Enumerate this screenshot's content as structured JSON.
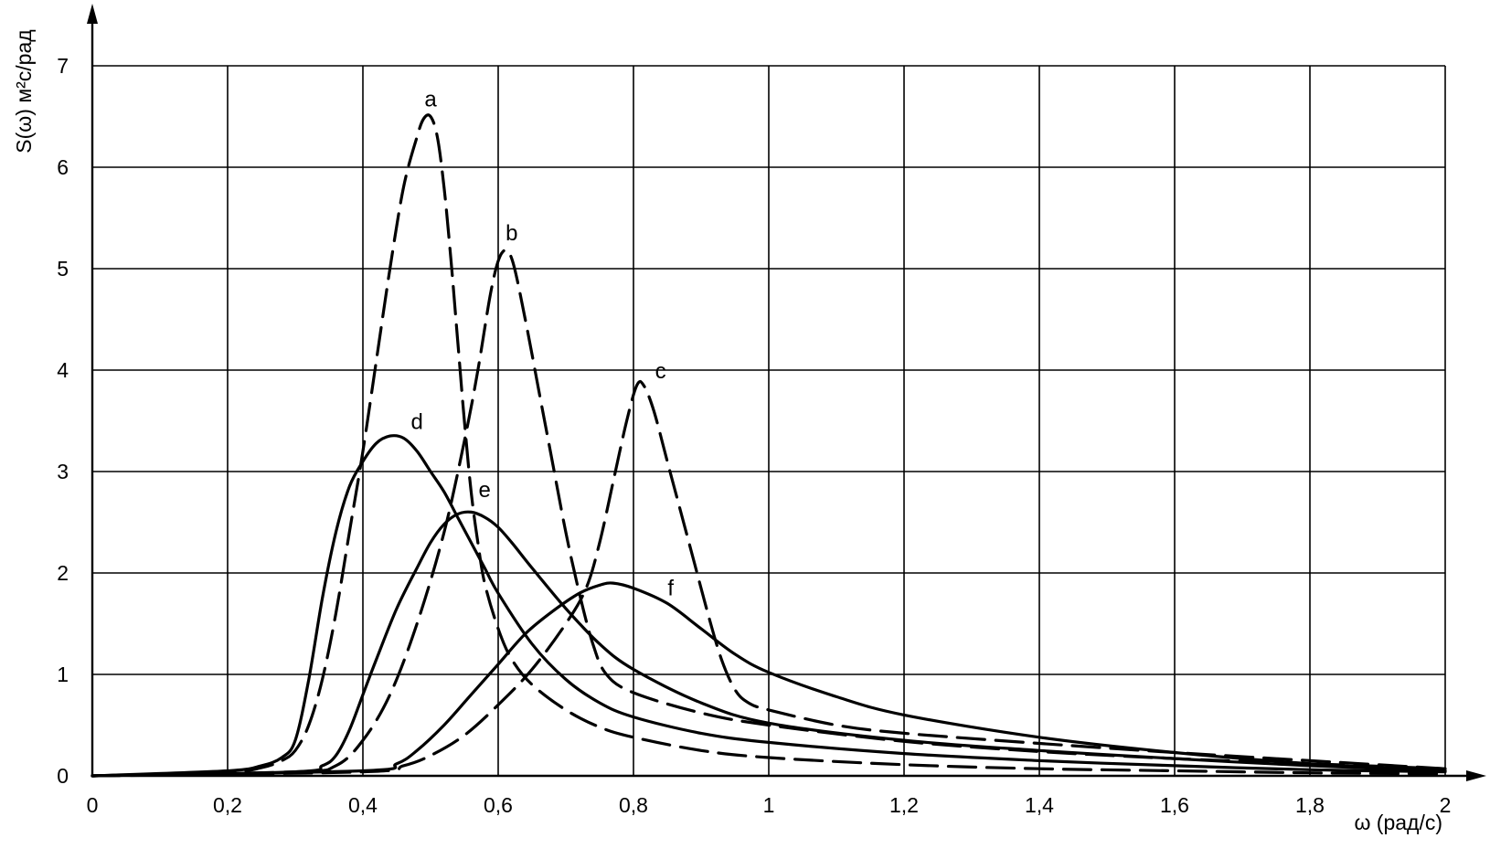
{
  "chart_data": {
    "type": "line",
    "ylabel": "S(ω) м²с/рад",
    "xlabel": "ω (рад/с)",
    "xlim": [
      0,
      2
    ],
    "ylim": [
      0,
      7
    ],
    "grid": true,
    "x_ticks": [
      {
        "value": 0,
        "label": "0"
      },
      {
        "value": 0.2,
        "label": "0,2"
      },
      {
        "value": 0.4,
        "label": "0,4"
      },
      {
        "value": 0.6,
        "label": "0,6"
      },
      {
        "value": 0.8,
        "label": "0,8"
      },
      {
        "value": 1,
        "label": "1"
      },
      {
        "value": 1.2,
        "label": "1,2"
      },
      {
        "value": 1.4,
        "label": "1,4"
      },
      {
        "value": 1.6,
        "label": "1,6"
      },
      {
        "value": 1.8,
        "label": "1,8"
      },
      {
        "value": 2,
        "label": "2"
      }
    ],
    "y_ticks": [
      {
        "value": 0,
        "label": "0"
      },
      {
        "value": 1,
        "label": "1"
      },
      {
        "value": 2,
        "label": "2"
      },
      {
        "value": 3,
        "label": "3"
      },
      {
        "value": 4,
        "label": "4"
      },
      {
        "value": 5,
        "label": "5"
      },
      {
        "value": 6,
        "label": "6"
      },
      {
        "value": 7,
        "label": "7"
      }
    ],
    "series": [
      {
        "label": "a",
        "style": "dashed",
        "label_at": [
          0.5,
          6.6
        ],
        "points": [
          [
            0,
            0
          ],
          [
            0.2,
            0.04
          ],
          [
            0.25,
            0.08
          ],
          [
            0.28,
            0.15
          ],
          [
            0.3,
            0.25
          ],
          [
            0.32,
            0.5
          ],
          [
            0.34,
            0.95
          ],
          [
            0.36,
            1.6
          ],
          [
            0.38,
            2.4
          ],
          [
            0.4,
            3.2
          ],
          [
            0.42,
            4.1
          ],
          [
            0.44,
            5.0
          ],
          [
            0.46,
            5.8
          ],
          [
            0.48,
            6.3
          ],
          [
            0.49,
            6.48
          ],
          [
            0.5,
            6.5
          ],
          [
            0.51,
            6.3
          ],
          [
            0.52,
            5.8
          ],
          [
            0.53,
            5.1
          ],
          [
            0.54,
            4.3
          ],
          [
            0.55,
            3.5
          ],
          [
            0.56,
            2.8
          ],
          [
            0.57,
            2.3
          ],
          [
            0.58,
            1.9
          ],
          [
            0.6,
            1.45
          ],
          [
            0.62,
            1.15
          ],
          [
            0.65,
            0.9
          ],
          [
            0.7,
            0.65
          ],
          [
            0.75,
            0.48
          ],
          [
            0.8,
            0.38
          ],
          [
            0.9,
            0.25
          ],
          [
            1.0,
            0.18
          ],
          [
            1.2,
            0.11
          ],
          [
            1.4,
            0.07
          ],
          [
            1.6,
            0.05
          ],
          [
            1.8,
            0.03
          ],
          [
            2.0,
            0.02
          ]
        ]
      },
      {
        "label": "b",
        "style": "dashed",
        "label_at": [
          0.62,
          5.28
        ],
        "points": [
          [
            0,
            0
          ],
          [
            0.3,
            0.04
          ],
          [
            0.36,
            0.1
          ],
          [
            0.4,
            0.35
          ],
          [
            0.44,
            0.8
          ],
          [
            0.48,
            1.5
          ],
          [
            0.52,
            2.4
          ],
          [
            0.55,
            3.3
          ],
          [
            0.57,
            4.0
          ],
          [
            0.59,
            4.8
          ],
          [
            0.605,
            5.15
          ],
          [
            0.62,
            5.1
          ],
          [
            0.64,
            4.5
          ],
          [
            0.66,
            3.8
          ],
          [
            0.68,
            3.1
          ],
          [
            0.7,
            2.4
          ],
          [
            0.72,
            1.8
          ],
          [
            0.74,
            1.3
          ],
          [
            0.76,
            1.0
          ],
          [
            0.8,
            0.82
          ],
          [
            0.9,
            0.62
          ],
          [
            1.0,
            0.5
          ],
          [
            1.2,
            0.34
          ],
          [
            1.4,
            0.24
          ],
          [
            1.6,
            0.17
          ],
          [
            1.8,
            0.12
          ],
          [
            2.0,
            0.07
          ]
        ]
      },
      {
        "label": "c",
        "style": "dashed",
        "label_at": [
          0.84,
          3.92
        ],
        "points": [
          [
            0,
            0
          ],
          [
            0.4,
            0.04
          ],
          [
            0.46,
            0.1
          ],
          [
            0.5,
            0.2
          ],
          [
            0.55,
            0.4
          ],
          [
            0.6,
            0.7
          ],
          [
            0.65,
            1.05
          ],
          [
            0.7,
            1.5
          ],
          [
            0.73,
            1.85
          ],
          [
            0.75,
            2.3
          ],
          [
            0.77,
            2.9
          ],
          [
            0.79,
            3.5
          ],
          [
            0.805,
            3.85
          ],
          [
            0.815,
            3.85
          ],
          [
            0.83,
            3.6
          ],
          [
            0.85,
            3.1
          ],
          [
            0.87,
            2.6
          ],
          [
            0.89,
            2.1
          ],
          [
            0.91,
            1.6
          ],
          [
            0.93,
            1.15
          ],
          [
            0.95,
            0.85
          ],
          [
            0.97,
            0.72
          ],
          [
            1.0,
            0.65
          ],
          [
            1.1,
            0.5
          ],
          [
            1.2,
            0.42
          ],
          [
            1.4,
            0.32
          ],
          [
            1.6,
            0.23
          ],
          [
            1.8,
            0.15
          ],
          [
            2.0,
            0.07
          ]
        ]
      },
      {
        "label": "d",
        "style": "solid",
        "label_at": [
          0.48,
          3.42
        ],
        "points": [
          [
            0,
            0
          ],
          [
            0.2,
            0.05
          ],
          [
            0.25,
            0.1
          ],
          [
            0.28,
            0.18
          ],
          [
            0.3,
            0.35
          ],
          [
            0.32,
            0.95
          ],
          [
            0.34,
            1.75
          ],
          [
            0.36,
            2.4
          ],
          [
            0.38,
            2.85
          ],
          [
            0.4,
            3.1
          ],
          [
            0.42,
            3.28
          ],
          [
            0.44,
            3.35
          ],
          [
            0.46,
            3.33
          ],
          [
            0.48,
            3.2
          ],
          [
            0.5,
            3.0
          ],
          [
            0.52,
            2.8
          ],
          [
            0.54,
            2.55
          ],
          [
            0.56,
            2.3
          ],
          [
            0.58,
            2.05
          ],
          [
            0.6,
            1.8
          ],
          [
            0.65,
            1.3
          ],
          [
            0.7,
            0.95
          ],
          [
            0.75,
            0.72
          ],
          [
            0.8,
            0.58
          ],
          [
            0.9,
            0.42
          ],
          [
            1.0,
            0.33
          ],
          [
            1.2,
            0.22
          ],
          [
            1.4,
            0.15
          ],
          [
            1.6,
            0.1
          ],
          [
            1.8,
            0.06
          ],
          [
            2.0,
            0.04
          ]
        ]
      },
      {
        "label": "e",
        "style": "solid",
        "label_at": [
          0.58,
          2.75
        ],
        "points": [
          [
            0,
            0
          ],
          [
            0.3,
            0.04
          ],
          [
            0.34,
            0.1
          ],
          [
            0.36,
            0.2
          ],
          [
            0.38,
            0.45
          ],
          [
            0.4,
            0.8
          ],
          [
            0.42,
            1.15
          ],
          [
            0.45,
            1.65
          ],
          [
            0.48,
            2.05
          ],
          [
            0.5,
            2.3
          ],
          [
            0.52,
            2.48
          ],
          [
            0.54,
            2.58
          ],
          [
            0.56,
            2.6
          ],
          [
            0.58,
            2.55
          ],
          [
            0.6,
            2.45
          ],
          [
            0.62,
            2.3
          ],
          [
            0.65,
            2.05
          ],
          [
            0.7,
            1.65
          ],
          [
            0.75,
            1.3
          ],
          [
            0.8,
            1.05
          ],
          [
            0.9,
            0.72
          ],
          [
            1.0,
            0.52
          ],
          [
            1.2,
            0.35
          ],
          [
            1.4,
            0.25
          ],
          [
            1.6,
            0.17
          ],
          [
            1.8,
            0.1
          ],
          [
            2.0,
            0.05
          ]
        ]
      },
      {
        "label": "f",
        "style": "solid",
        "label_at": [
          0.855,
          1.78
        ],
        "points": [
          [
            0,
            0
          ],
          [
            0.4,
            0.05
          ],
          [
            0.45,
            0.12
          ],
          [
            0.48,
            0.25
          ],
          [
            0.52,
            0.5
          ],
          [
            0.56,
            0.8
          ],
          [
            0.6,
            1.1
          ],
          [
            0.64,
            1.4
          ],
          [
            0.68,
            1.62
          ],
          [
            0.72,
            1.8
          ],
          [
            0.75,
            1.88
          ],
          [
            0.77,
            1.9
          ],
          [
            0.8,
            1.85
          ],
          [
            0.85,
            1.7
          ],
          [
            0.9,
            1.45
          ],
          [
            0.95,
            1.2
          ],
          [
            1.0,
            1.02
          ],
          [
            1.1,
            0.78
          ],
          [
            1.2,
            0.6
          ],
          [
            1.4,
            0.38
          ],
          [
            1.6,
            0.23
          ],
          [
            1.8,
            0.12
          ],
          [
            2.0,
            0.05
          ]
        ]
      }
    ]
  }
}
